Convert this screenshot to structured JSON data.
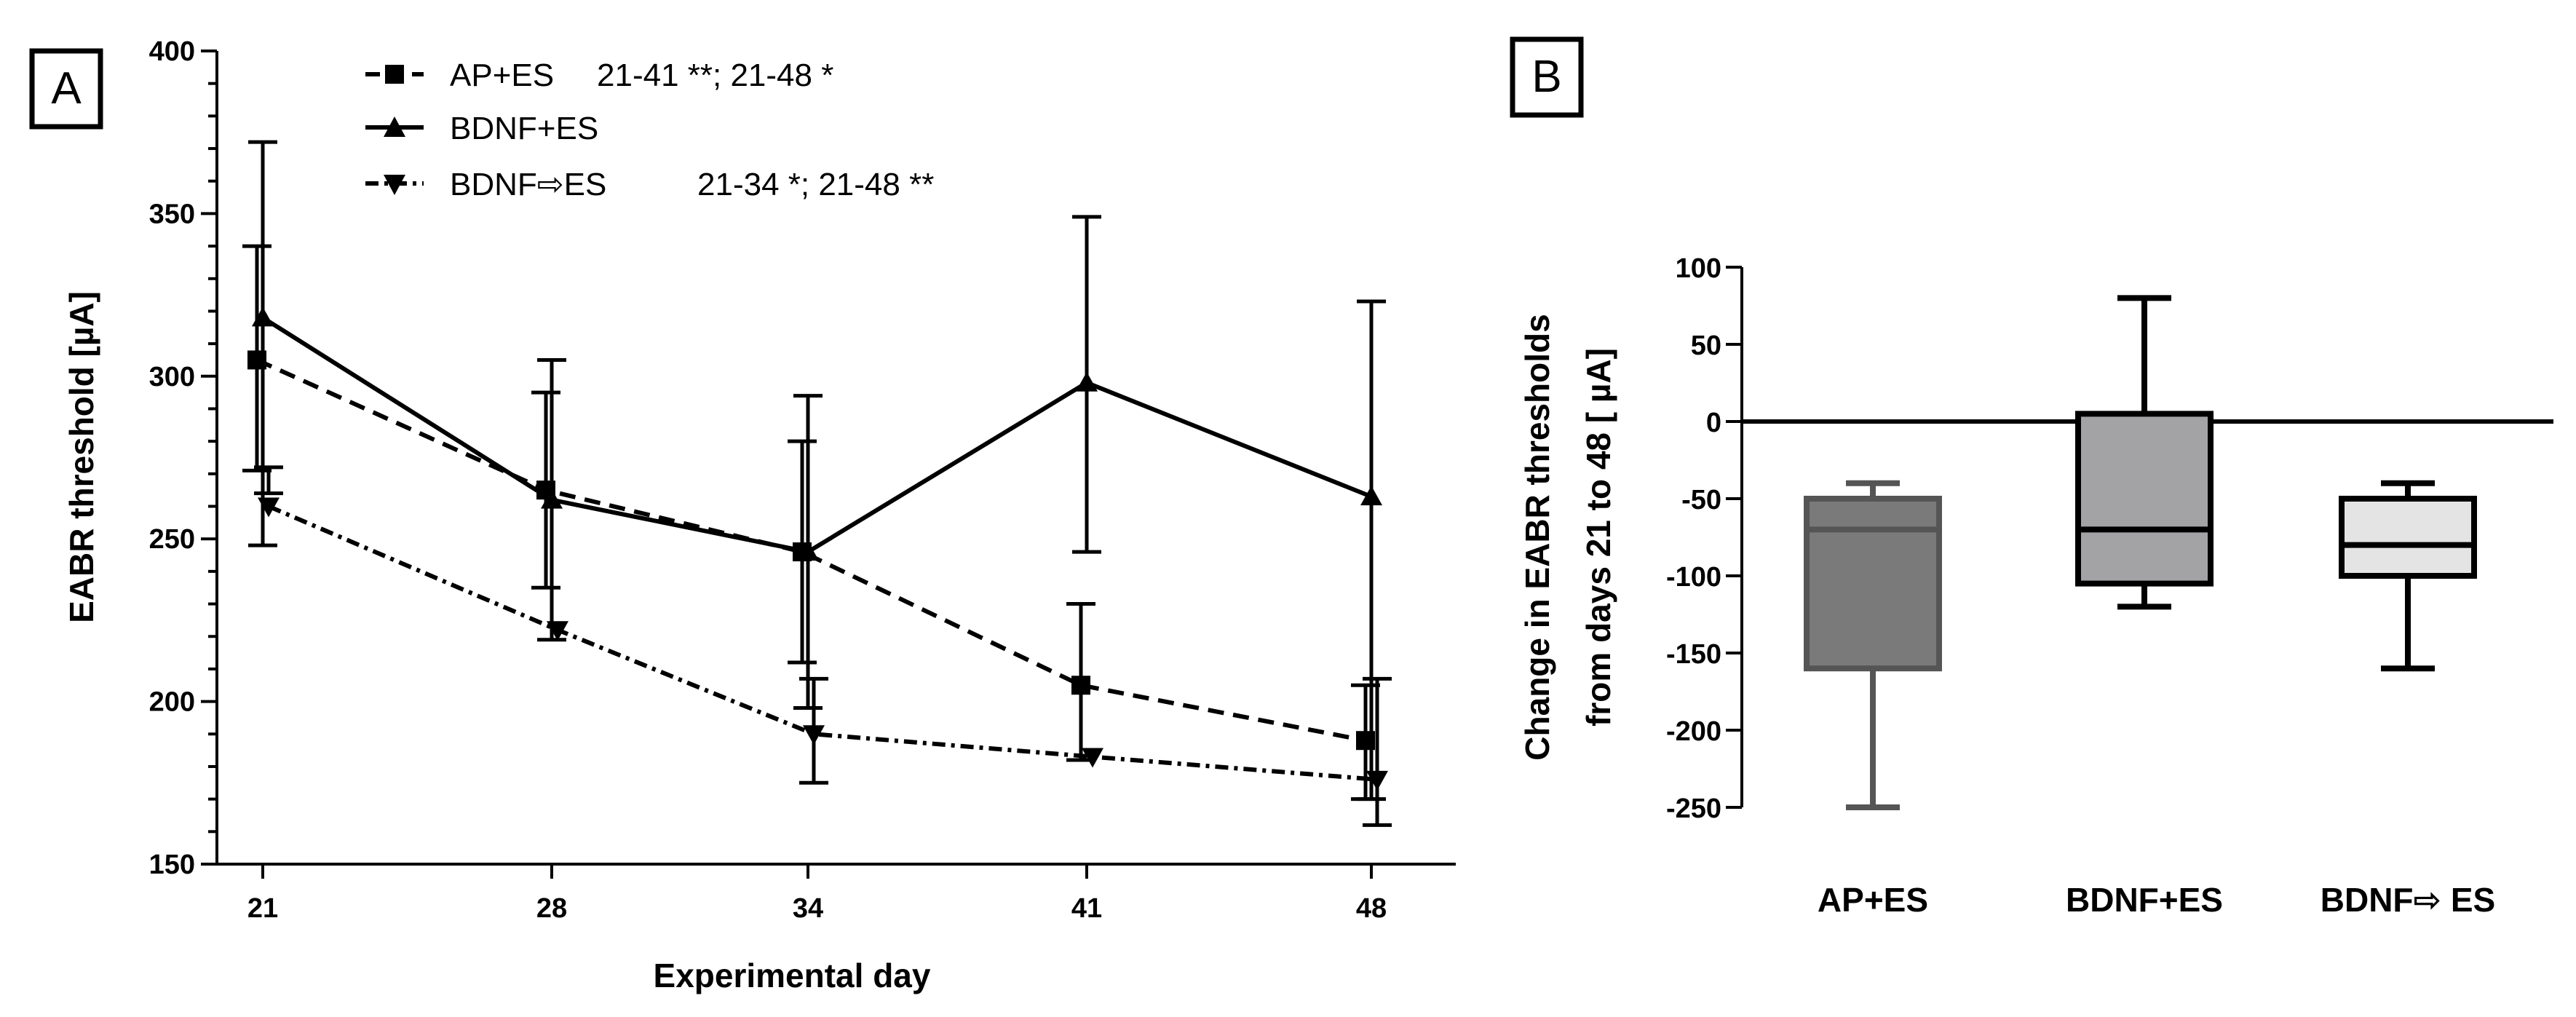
{
  "chart_data": [
    {
      "type": "line",
      "panel_label": "A",
      "xlabel": "Experimental day",
      "ylabel": "EABR threshold [µA]",
      "x": [
        21,
        28,
        34,
        41,
        48
      ],
      "ylim": [
        150,
        400
      ],
      "yticks": [
        150,
        200,
        250,
        300,
        350,
        400
      ],
      "series": [
        {
          "name": "AP+ES",
          "annotation": "21-41 **; 21-48 *",
          "marker": "square",
          "line_style": "dashed",
          "values": [
            305,
            265,
            246,
            205,
            188
          ],
          "err_upper": [
            340,
            295,
            280,
            230,
            205
          ],
          "err_lower": [
            271,
            235,
            212,
            182,
            170
          ]
        },
        {
          "name": "BDNF+ES",
          "annotation": "",
          "marker": "triangle-up",
          "line_style": "solid",
          "values": [
            318,
            262,
            246,
            298,
            263
          ],
          "err_upper": [
            372,
            305,
            294,
            349,
            323
          ],
          "err_lower": [
            248,
            219,
            198,
            246,
            170
          ]
        },
        {
          "name": "BDNF⇨ES",
          "annotation": "21-34 *; 21-48 **",
          "marker": "triangle-down",
          "line_style": "dash-dot",
          "values": [
            260,
            222,
            190,
            183,
            176
          ],
          "err_upper": [
            272,
            null,
            207,
            null,
            207
          ],
          "err_lower": [
            264,
            null,
            175,
            null,
            162
          ]
        }
      ]
    },
    {
      "type": "box",
      "panel_label": "B",
      "ylabel_line1": "Change in EABR thresholds",
      "ylabel_line2": "from days 21 to 48 [ µA]",
      "ylim": [
        -250,
        100
      ],
      "yticks": [
        100,
        50,
        0,
        -50,
        -100,
        -150,
        -200,
        -250
      ],
      "categories": [
        "AP+ES",
        "BDNF+ES",
        "BDNF⇨ ES"
      ],
      "boxes": [
        {
          "min": -250,
          "q1": -160,
          "median": -70,
          "q3": -50,
          "max": -40,
          "fill": "#7a7a7a",
          "stroke": "#555555"
        },
        {
          "min": -120,
          "q1": -105,
          "median": -70,
          "q3": 5,
          "max": 80,
          "fill": "#a3a3a5",
          "stroke": "#000000"
        },
        {
          "min": -160,
          "q1": -100,
          "median": -80,
          "q3": -50,
          "max": -40,
          "fill": "#e4e4e4",
          "stroke": "#000000"
        }
      ]
    }
  ]
}
